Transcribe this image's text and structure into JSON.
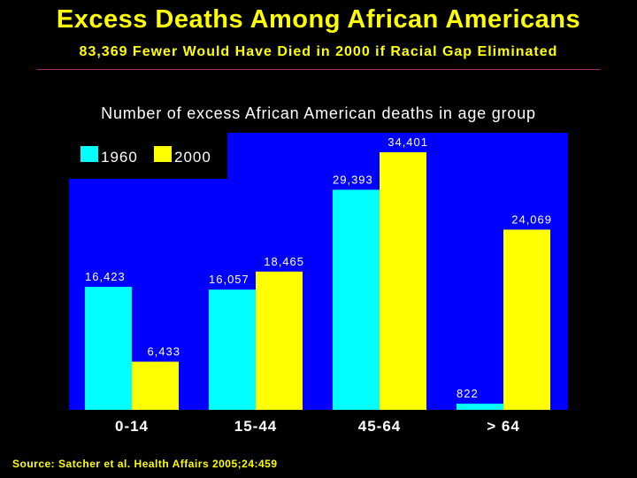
{
  "slide": {
    "title": "Excess Deaths Among African Americans",
    "subtitle": "83,369 Fewer Would Have Died in 2000 if Racial Gap Eliminated",
    "source": "Source: Satcher et al. Health Affairs 2005;24:459"
  },
  "colors": {
    "background": "#000000",
    "plot": "#0000ff",
    "series_1960": "#00ffff",
    "series_2000": "#ffff00",
    "title_text": "#ffff00",
    "label_text": "#ffffff"
  },
  "chart_data": {
    "type": "bar",
    "title": "Number of excess African American deaths in age group",
    "categories": [
      "0-14",
      "15-44",
      "45-64",
      "> 64"
    ],
    "series": [
      {
        "name": "1960",
        "values": [
          16423,
          16057,
          29393,
          822
        ],
        "labels": [
          "16,423",
          "16,057",
          "29,393",
          "822"
        ]
      },
      {
        "name": "2000",
        "values": [
          6433,
          18465,
          34401,
          24069
        ],
        "labels": [
          "6,433",
          "18,465",
          "34,401",
          "24,069"
        ]
      }
    ],
    "xlabel": "",
    "ylabel": "",
    "ylim": [
      0,
      37000
    ],
    "legend": "top-left",
    "grid": false
  }
}
